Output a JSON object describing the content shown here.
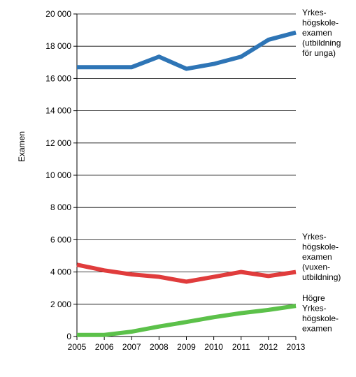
{
  "chart_data": {
    "type": "line",
    "title": "",
    "xlabel": "",
    "ylabel": "Examen",
    "x": [
      2005,
      2006,
      2007,
      2008,
      2009,
      2010,
      2011,
      2012,
      2013
    ],
    "x_tick_labels": [
      "2005",
      "2006",
      "2007",
      "2008",
      "2009",
      "2010",
      "2011",
      "2012",
      "2013"
    ],
    "ylim": [
      0,
      20000
    ],
    "y_ticks": [
      0,
      2000,
      4000,
      6000,
      8000,
      10000,
      12000,
      14000,
      16000,
      18000,
      20000
    ],
    "y_tick_labels": [
      "0",
      "2 000",
      "4 000",
      "6 000",
      "8 000",
      "10 000",
      "12 000",
      "14 000",
      "16 000",
      "18 000",
      "20 000"
    ],
    "grid": true,
    "legend": "labels at right end of each line",
    "series": [
      {
        "name": "Yrkes-högskole-examen (utbildning för unga)",
        "label_lines": [
          "Yrkes-",
          "högskole-",
          "examen",
          "(utbildning",
          "för unga)"
        ],
        "color": "#2e75b6",
        "values": [
          16700,
          16700,
          16700,
          17350,
          16600,
          16900,
          17350,
          18400,
          18850
        ]
      },
      {
        "name": "Yrkes-högskole-examen (vuxen-utbildning)",
        "label_lines": [
          "Yrkes-",
          "högskole-",
          "examen",
          "(vuxen-",
          "utbildning)"
        ],
        "color": "#e03c3c",
        "values": [
          4450,
          4100,
          3850,
          3700,
          3400,
          3700,
          4000,
          3750,
          4000
        ]
      },
      {
        "name": "Högre Yrkes-högskole-examen",
        "label_lines": [
          "Högre",
          "Yrkes-",
          "högskole-",
          "examen"
        ],
        "color": "#5cc14a",
        "values": [
          100,
          100,
          300,
          620,
          900,
          1200,
          1450,
          1650,
          1900
        ]
      }
    ]
  }
}
